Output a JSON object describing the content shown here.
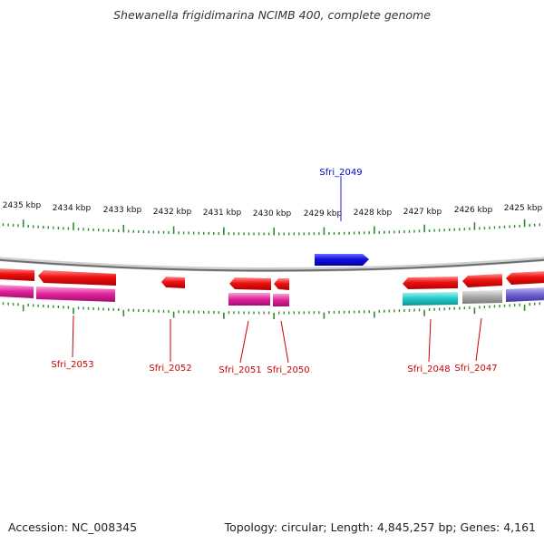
{
  "title": "Shewanella frigidimarina NCIMB 400, complete genome",
  "accession_label": "Accession: NC_008345",
  "summary_label": "Topology: circular; Length: 4,845,257 bp; Genes: 4,161",
  "colors": {
    "backbone": "#8c8c8c",
    "tick": "#2e8b2e",
    "forward_gene": "#1010e0",
    "reverse_gene": "#ee1111",
    "label_forward": "#0000cc",
    "label_reverse": "#cc0000",
    "magenta": "#e0209a",
    "cyan": "#1ec8c8",
    "gray": "#a8a8a8",
    "purple": "#7060d0"
  },
  "scale": {
    "labels": [
      "2435 kbp",
      "2434 kbp",
      "2433 kbp",
      "2432 kbp",
      "2431 kbp",
      "2430 kbp",
      "2429 kbp",
      "2428 kbp",
      "2427 kbp",
      "2426 kbp",
      "2425 kbp"
    ]
  },
  "genes": [
    {
      "label": "Sfri_2053",
      "strand": "reverse"
    },
    {
      "label": "Sfri_2052",
      "strand": "reverse"
    },
    {
      "label": "Sfri_2051",
      "strand": "reverse"
    },
    {
      "label": "Sfri_2050",
      "strand": "reverse"
    },
    {
      "label": "Sfri_2049",
      "strand": "forward"
    },
    {
      "label": "Sfri_2048",
      "strand": "reverse"
    },
    {
      "label": "Sfri_2047",
      "strand": "reverse"
    }
  ]
}
